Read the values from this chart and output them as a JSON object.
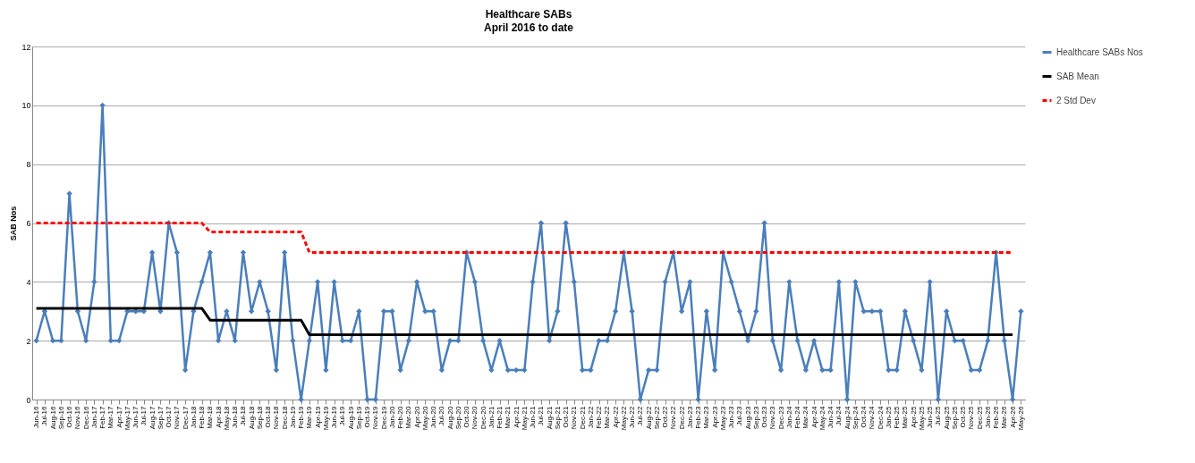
{
  "chart_data": {
    "type": "line",
    "title": "Healthcare SABs",
    "subtitle": "April 2016 to date",
    "ylabel": "SAB Nos",
    "categories": [
      "Jun-16",
      "Jul-16",
      "Aug-16",
      "Sep-16",
      "Oct-16",
      "Nov-16",
      "Dec-16",
      "Jan-17",
      "Feb-17",
      "Mar-17",
      "Apr-17",
      "May-17",
      "Jun-17",
      "Jul-17",
      "Aug-17",
      "Sep-17",
      "Oct-17",
      "Nov-17",
      "Dec-17",
      "Jan-18",
      "Feb-18",
      "Mar-18",
      "Apr-18",
      "May-18",
      "Jun-18",
      "Jul-18",
      "Aug-18",
      "Sep-18",
      "Oct-18",
      "Nov-18",
      "Dec-18",
      "Jan-19",
      "Feb-19",
      "Mar-19",
      "Apr-19",
      "May-19",
      "Jun-19",
      "Jul-19",
      "Aug-19",
      "Sep-19",
      "Oct-19",
      "Nov-19",
      "Dec-19",
      "Jan-20",
      "Feb-20",
      "Mar-20",
      "Apr-20",
      "May-20",
      "Jun-20",
      "Jul-20",
      "Aug-20",
      "Sep-20",
      "Oct-20",
      "Nov-20",
      "Dec-20",
      "Jan-21",
      "Feb-21",
      "Mar-21",
      "Apr-21",
      "May-21",
      "Jun-21",
      "Jul-21",
      "Aug-21",
      "Sep-21",
      "Oct-21",
      "Nov-21",
      "Dec-21",
      "Jan-22",
      "Feb-22",
      "Mar-22",
      "Apr-22",
      "May-22",
      "Jun-22",
      "Jul-22",
      "Aug-22",
      "Sep-22",
      "Oct-22",
      "Nov-22",
      "Dec-22",
      "Jan-23",
      "Feb-23",
      "Mar-23",
      "Apr-23",
      "May-23",
      "Jun-23",
      "Jul-23",
      "Aug-23",
      "Sep-23",
      "Oct-23",
      "Nov-23",
      "Dec-23",
      "Jan-24",
      "Feb-24",
      "Mar-24",
      "Apr-24",
      "May-24",
      "Jun-24",
      "Jul-24",
      "Aug-24",
      "Sep-24",
      "Oct-24",
      "Nov-24",
      "Dec-24",
      "Jan-25",
      "Feb-25",
      "Mar-25",
      "Apr-25",
      "May-25",
      "Jun-25",
      "Jul-25",
      "Aug-25",
      "Sep-25",
      "Oct-25",
      "Nov-25",
      "Dec-25",
      "Jan-26",
      "Feb-26",
      "Mar-26",
      "Apr-26",
      "May-26"
    ],
    "series": [
      {
        "name": "Healthcare SABs Nos",
        "color": "#4a7ebb",
        "marker": "diamond",
        "line_style": "solid",
        "values": [
          2,
          3,
          2,
          2,
          7,
          3,
          2,
          4,
          10,
          2,
          2,
          3,
          3,
          3,
          5,
          3,
          6,
          5,
          1,
          3,
          4,
          5,
          2,
          3,
          2,
          5,
          3,
          4,
          3,
          1,
          5,
          2,
          0,
          2,
          4,
          1,
          4,
          2,
          2,
          3,
          0,
          0,
          3,
          3,
          1,
          2,
          4,
          3,
          3,
          1,
          2,
          2,
          5,
          4,
          2,
          1,
          2,
          1,
          1,
          1,
          4,
          6,
          2,
          3,
          6,
          4,
          1,
          1,
          2,
          2,
          3,
          5,
          3,
          0,
          1,
          1,
          4,
          5,
          3,
          4,
          0,
          3,
          1,
          5,
          4,
          3,
          2,
          3,
          6,
          2,
          1,
          4,
          2,
          1,
          2,
          1,
          1,
          4,
          0,
          4,
          3,
          3,
          3,
          1,
          1,
          3,
          2,
          1,
          4,
          0,
          3,
          2,
          2,
          1,
          1,
          2,
          5,
          2,
          0,
          3
        ]
      },
      {
        "name": "SAB Mean",
        "color": "#000000",
        "marker": "none",
        "line_style": "solid",
        "values": [
          3.1,
          3.1,
          3.1,
          3.1,
          3.1,
          3.1,
          3.1,
          3.1,
          3.1,
          3.1,
          3.1,
          3.1,
          3.1,
          3.1,
          3.1,
          3.1,
          3.1,
          3.1,
          3.1,
          3.1,
          3.1,
          2.7,
          2.7,
          2.7,
          2.7,
          2.7,
          2.7,
          2.7,
          2.7,
          2.7,
          2.7,
          2.7,
          2.7,
          2.2,
          2.2,
          2.2,
          2.2,
          2.2,
          2.2,
          2.2,
          2.2,
          2.2,
          2.2,
          2.2,
          2.2,
          2.2,
          2.2,
          2.2,
          2.2,
          2.2,
          2.2,
          2.2,
          2.2,
          2.2,
          2.2,
          2.2,
          2.2,
          2.2,
          2.2,
          2.2,
          2.2,
          2.2,
          2.2,
          2.2,
          2.2,
          2.2,
          2.2,
          2.2,
          2.2,
          2.2,
          2.2,
          2.2,
          2.2,
          2.2,
          2.2,
          2.2,
          2.2,
          2.2,
          2.2,
          2.2,
          2.2,
          2.2,
          2.2,
          2.2,
          2.2,
          2.2,
          2.2,
          2.2,
          2.2,
          2.2,
          2.2,
          2.2,
          2.2,
          2.2,
          2.2,
          2.2,
          2.2,
          2.2,
          2.2,
          2.2,
          2.2,
          2.2,
          2.2,
          2.2,
          2.2,
          2.2,
          2.2,
          2.2,
          2.2,
          2.2,
          2.2,
          2.2,
          2.2,
          2.2,
          2.2,
          2.2,
          2.2,
          2.2,
          2.2,
          null
        ]
      },
      {
        "name": "2 Std Dev",
        "color": "#ff0000",
        "marker": "none",
        "line_style": "dashed",
        "values": [
          6,
          6,
          6,
          6,
          6,
          6,
          6,
          6,
          6,
          6,
          6,
          6,
          6,
          6,
          6,
          6,
          6,
          6,
          6,
          6,
          6,
          5.7,
          5.7,
          5.7,
          5.7,
          5.7,
          5.7,
          5.7,
          5.7,
          5.7,
          5.7,
          5.7,
          5.7,
          5,
          5,
          5,
          5,
          5,
          5,
          5,
          5,
          5,
          5,
          5,
          5,
          5,
          5,
          5,
          5,
          5,
          5,
          5,
          5,
          5,
          5,
          5,
          5,
          5,
          5,
          5,
          5,
          5,
          5,
          5,
          5,
          5,
          5,
          5,
          5,
          5,
          5,
          5,
          5,
          5,
          5,
          5,
          5,
          5,
          5,
          5,
          5,
          5,
          5,
          5,
          5,
          5,
          5,
          5,
          5,
          5,
          5,
          5,
          5,
          5,
          5,
          5,
          5,
          5,
          5,
          5,
          5,
          5,
          5,
          5,
          5,
          5,
          5,
          5,
          5,
          5,
          5,
          5,
          5,
          5,
          5,
          5,
          5,
          5,
          5,
          null
        ]
      }
    ],
    "ylim": [
      0,
      12
    ],
    "yticks": [
      0,
      2,
      4,
      6,
      8,
      10,
      12
    ],
    "grid": "y",
    "legend": "right"
  }
}
